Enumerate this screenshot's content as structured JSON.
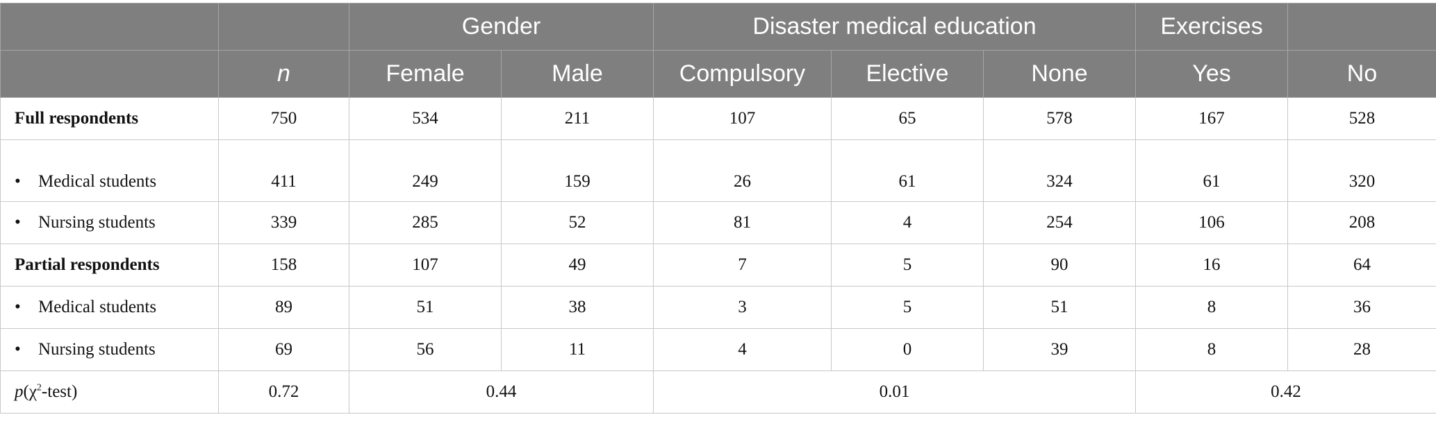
{
  "header": {
    "group_gender": "Gender",
    "group_education": "Disaster medical education",
    "group_exercises": "Exercises",
    "col_n": "n",
    "col_female": "Female",
    "col_male": "Male",
    "col_compulsory": "Compulsory",
    "col_elective": "Elective",
    "col_none": "None",
    "col_yes": "Yes",
    "col_no": "No"
  },
  "rows": [
    {
      "label": "Full respondents",
      "n": "750",
      "female": "534",
      "male": "211",
      "compulsory": "107",
      "elective": "65",
      "none": "578",
      "yes": "167",
      "no": "528"
    },
    {
      "label": "Medical students",
      "n": "411",
      "female": "249",
      "male": "159",
      "compulsory": "26",
      "elective": "61",
      "none": "324",
      "yes": "61",
      "no": "320"
    },
    {
      "label": "Nursing students",
      "n": "339",
      "female": "285",
      "male": "52",
      "compulsory": "81",
      "elective": "4",
      "none": "254",
      "yes": "106",
      "no": "208"
    },
    {
      "label": "Partial respondents",
      "n": "158",
      "female": "107",
      "male": "49",
      "compulsory": "7",
      "elective": "5",
      "none": "90",
      "yes": "16",
      "no": "64"
    },
    {
      "label": "Medical students",
      "n": "89",
      "female": "51",
      "male": "38",
      "compulsory": "3",
      "elective": "5",
      "none": "51",
      "yes": "8",
      "no": "36"
    },
    {
      "label": "Nursing students",
      "n": "69",
      "female": "56",
      "male": "11",
      "compulsory": "4",
      "elective": "0",
      "none": "39",
      "yes": "8",
      "no": "28"
    }
  ],
  "ptest": {
    "label_p": "p",
    "label_rest_a": "(χ",
    "label_sup": "2",
    "label_rest_b": "-test)",
    "n": "0.72",
    "gender": "0.44",
    "education": "0.01",
    "exercises": "0.42"
  },
  "bullet_glyph": "•"
}
